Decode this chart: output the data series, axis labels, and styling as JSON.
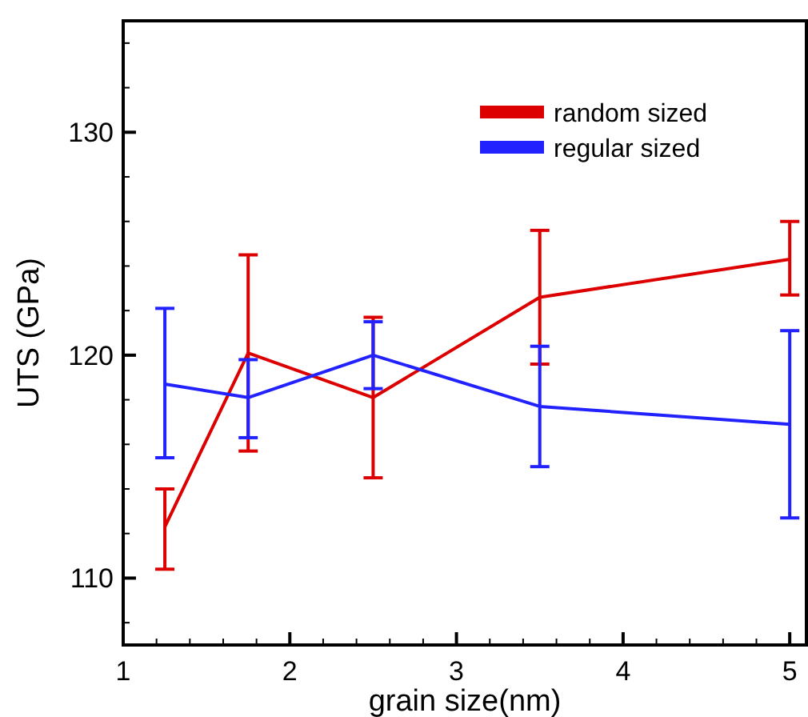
{
  "chart_data": {
    "type": "line",
    "xlabel": "grain size(nm)",
    "ylabel": "UTS (GPa)",
    "x": [
      1.25,
      1.75,
      2.5,
      3.5,
      5
    ],
    "series": [
      {
        "name": "random sized",
        "color": "#dd0000",
        "values": [
          112.3,
          120.1,
          118.1,
          122.6,
          124.3
        ],
        "errors": [
          [
            110.4,
            114.0
          ],
          [
            115.7,
            124.5
          ],
          [
            114.5,
            121.7
          ],
          [
            119.6,
            125.6
          ],
          [
            122.7,
            126.0
          ]
        ]
      },
      {
        "name": "regular sized",
        "color": "#2222ff",
        "values": [
          118.7,
          118.1,
          120.0,
          117.7,
          116.9
        ],
        "errors": [
          [
            115.4,
            122.1
          ],
          [
            116.3,
            119.8
          ],
          [
            118.5,
            121.5
          ],
          [
            115.0,
            120.4
          ],
          [
            112.7,
            121.1
          ]
        ]
      }
    ],
    "xlim": [
      1,
      5.1
    ],
    "xticks": [
      1,
      {
        "value": 1.2,
        "label": null
      },
      {
        "value": 1.4,
        "label": null
      },
      {
        "value": 1.6,
        "label": null
      },
      {
        "value": 1.8,
        "label": null
      },
      2,
      {
        "value": 2.2,
        "label": null
      },
      {
        "value": 2.4,
        "label": null
      },
      {
        "value": 2.6,
        "label": null
      },
      {
        "value": 2.8,
        "label": null
      },
      3,
      {
        "value": 3.2,
        "label": null
      },
      {
        "value": 3.4,
        "label": null
      },
      {
        "value": 3.6,
        "label": null
      },
      {
        "value": 3.8,
        "label": null
      },
      4,
      {
        "value": 4.2,
        "label": null
      },
      {
        "value": 4.4,
        "label": null
      },
      {
        "value": 4.6,
        "label": null
      },
      {
        "value": 4.8,
        "label": null
      },
      5
    ],
    "ylim": [
      107,
      135
    ],
    "yticks": [
      {
        "value": 108,
        "label": null
      },
      110,
      {
        "value": 112,
        "label": null
      },
      {
        "value": 114,
        "label": null
      },
      {
        "value": 116,
        "label": null
      },
      {
        "value": 118,
        "label": null
      },
      120,
      {
        "value": 122,
        "label": null
      },
      {
        "value": 124,
        "label": null
      },
      {
        "value": 126,
        "label": null
      },
      {
        "value": 128,
        "label": null
      },
      130,
      {
        "value": 132,
        "label": null
      },
      {
        "value": 134,
        "label": null
      }
    ],
    "grid": false,
    "legend": "top right",
    "marker": "none",
    "line_style": "solid"
  }
}
